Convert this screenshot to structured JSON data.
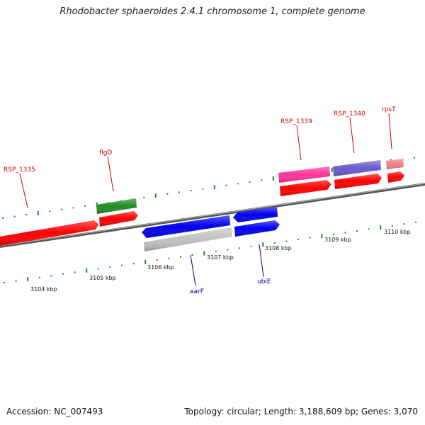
{
  "title": "Rhodobacter sphaeroides 2.4.1 chromosome 1, complete genome",
  "footer": {
    "accession": "Accession: NC_007493",
    "summary": "Topology: circular; Length: 3,188,609 bp; Genes: 3,070"
  },
  "colors": {
    "red": "#ff0000",
    "green": "#228b22",
    "blue": "#0000ee",
    "gray": "#c0c0c0",
    "pink": "#ff3399",
    "slate": "#6a5acd",
    "salmon": "#f08080",
    "label_red": "#cc0000",
    "label_blue": "#000099",
    "dot_green": "#228b22"
  },
  "scale_labels": [
    "3104 kbp",
    "3105 kbp",
    "3106 kbp",
    "3107 kbp",
    "3108 kbp",
    "3109 kbp",
    "3110 kbp"
  ],
  "gene_labels": [
    {
      "text": "RSP_1335",
      "color": "label_red"
    },
    {
      "text": "flgD",
      "color": "label_red"
    },
    {
      "text": "RSP_1339",
      "color": "label_red"
    },
    {
      "text": "RSP_1340",
      "color": "label_red"
    },
    {
      "text": "rpsT",
      "color": "label_red"
    },
    {
      "text": "aarF",
      "color": "label_blue"
    },
    {
      "text": "ubiE",
      "color": "label_blue"
    }
  ]
}
